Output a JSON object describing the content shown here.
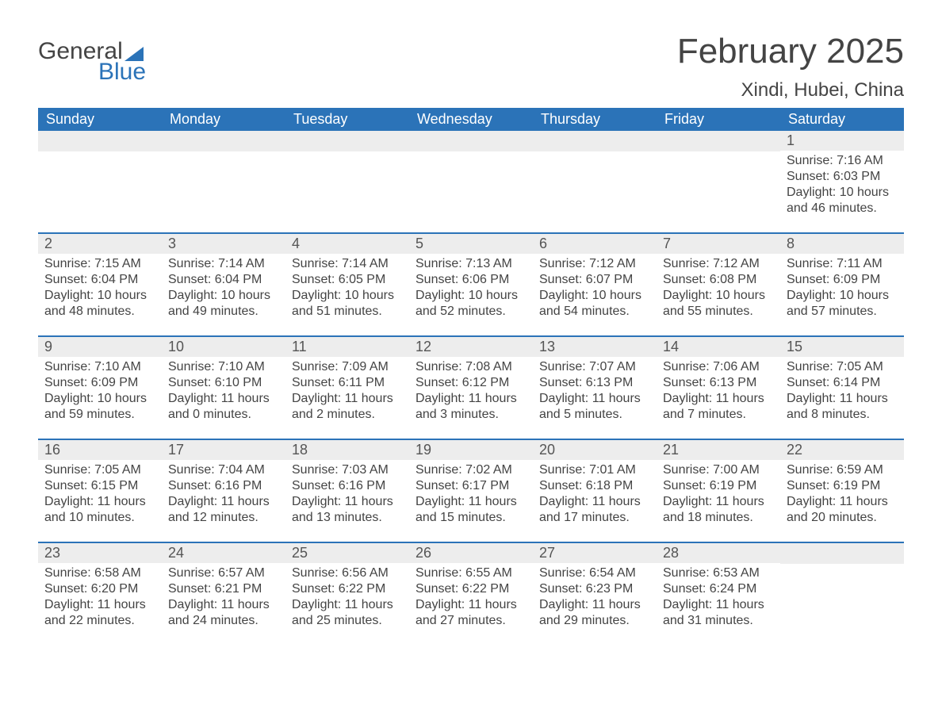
{
  "logo": {
    "part1": "General",
    "part2": "Blue"
  },
  "title": "February 2025",
  "location": "Xindi, Hubei, China",
  "colors": {
    "header_bg": "#2b73b8",
    "header_text": "#ffffff",
    "band_bg": "#ededed",
    "text": "#444444",
    "divider": "#2b73b8",
    "page_bg": "#ffffff"
  },
  "weekdays": [
    "Sunday",
    "Monday",
    "Tuesday",
    "Wednesday",
    "Thursday",
    "Friday",
    "Saturday"
  ],
  "labels": {
    "sunrise": "Sunrise:",
    "sunset": "Sunset:",
    "daylight": "Daylight:"
  },
  "first_weekday_index": 6,
  "days": [
    {
      "n": 1,
      "sunrise": "7:16 AM",
      "sunset": "6:03 PM",
      "daylight": "10 hours and 46 minutes."
    },
    {
      "n": 2,
      "sunrise": "7:15 AM",
      "sunset": "6:04 PM",
      "daylight": "10 hours and 48 minutes."
    },
    {
      "n": 3,
      "sunrise": "7:14 AM",
      "sunset": "6:04 PM",
      "daylight": "10 hours and 49 minutes."
    },
    {
      "n": 4,
      "sunrise": "7:14 AM",
      "sunset": "6:05 PM",
      "daylight": "10 hours and 51 minutes."
    },
    {
      "n": 5,
      "sunrise": "7:13 AM",
      "sunset": "6:06 PM",
      "daylight": "10 hours and 52 minutes."
    },
    {
      "n": 6,
      "sunrise": "7:12 AM",
      "sunset": "6:07 PM",
      "daylight": "10 hours and 54 minutes."
    },
    {
      "n": 7,
      "sunrise": "7:12 AM",
      "sunset": "6:08 PM",
      "daylight": "10 hours and 55 minutes."
    },
    {
      "n": 8,
      "sunrise": "7:11 AM",
      "sunset": "6:09 PM",
      "daylight": "10 hours and 57 minutes."
    },
    {
      "n": 9,
      "sunrise": "7:10 AM",
      "sunset": "6:09 PM",
      "daylight": "10 hours and 59 minutes."
    },
    {
      "n": 10,
      "sunrise": "7:10 AM",
      "sunset": "6:10 PM",
      "daylight": "11 hours and 0 minutes."
    },
    {
      "n": 11,
      "sunrise": "7:09 AM",
      "sunset": "6:11 PM",
      "daylight": "11 hours and 2 minutes."
    },
    {
      "n": 12,
      "sunrise": "7:08 AM",
      "sunset": "6:12 PM",
      "daylight": "11 hours and 3 minutes."
    },
    {
      "n": 13,
      "sunrise": "7:07 AM",
      "sunset": "6:13 PM",
      "daylight": "11 hours and 5 minutes."
    },
    {
      "n": 14,
      "sunrise": "7:06 AM",
      "sunset": "6:13 PM",
      "daylight": "11 hours and 7 minutes."
    },
    {
      "n": 15,
      "sunrise": "7:05 AM",
      "sunset": "6:14 PM",
      "daylight": "11 hours and 8 minutes."
    },
    {
      "n": 16,
      "sunrise": "7:05 AM",
      "sunset": "6:15 PM",
      "daylight": "11 hours and 10 minutes."
    },
    {
      "n": 17,
      "sunrise": "7:04 AM",
      "sunset": "6:16 PM",
      "daylight": "11 hours and 12 minutes."
    },
    {
      "n": 18,
      "sunrise": "7:03 AM",
      "sunset": "6:16 PM",
      "daylight": "11 hours and 13 minutes."
    },
    {
      "n": 19,
      "sunrise": "7:02 AM",
      "sunset": "6:17 PM",
      "daylight": "11 hours and 15 minutes."
    },
    {
      "n": 20,
      "sunrise": "7:01 AM",
      "sunset": "6:18 PM",
      "daylight": "11 hours and 17 minutes."
    },
    {
      "n": 21,
      "sunrise": "7:00 AM",
      "sunset": "6:19 PM",
      "daylight": "11 hours and 18 minutes."
    },
    {
      "n": 22,
      "sunrise": "6:59 AM",
      "sunset": "6:19 PM",
      "daylight": "11 hours and 20 minutes."
    },
    {
      "n": 23,
      "sunrise": "6:58 AM",
      "sunset": "6:20 PM",
      "daylight": "11 hours and 22 minutes."
    },
    {
      "n": 24,
      "sunrise": "6:57 AM",
      "sunset": "6:21 PM",
      "daylight": "11 hours and 24 minutes."
    },
    {
      "n": 25,
      "sunrise": "6:56 AM",
      "sunset": "6:22 PM",
      "daylight": "11 hours and 25 minutes."
    },
    {
      "n": 26,
      "sunrise": "6:55 AM",
      "sunset": "6:22 PM",
      "daylight": "11 hours and 27 minutes."
    },
    {
      "n": 27,
      "sunrise": "6:54 AM",
      "sunset": "6:23 PM",
      "daylight": "11 hours and 29 minutes."
    },
    {
      "n": 28,
      "sunrise": "6:53 AM",
      "sunset": "6:24 PM",
      "daylight": "11 hours and 31 minutes."
    }
  ]
}
